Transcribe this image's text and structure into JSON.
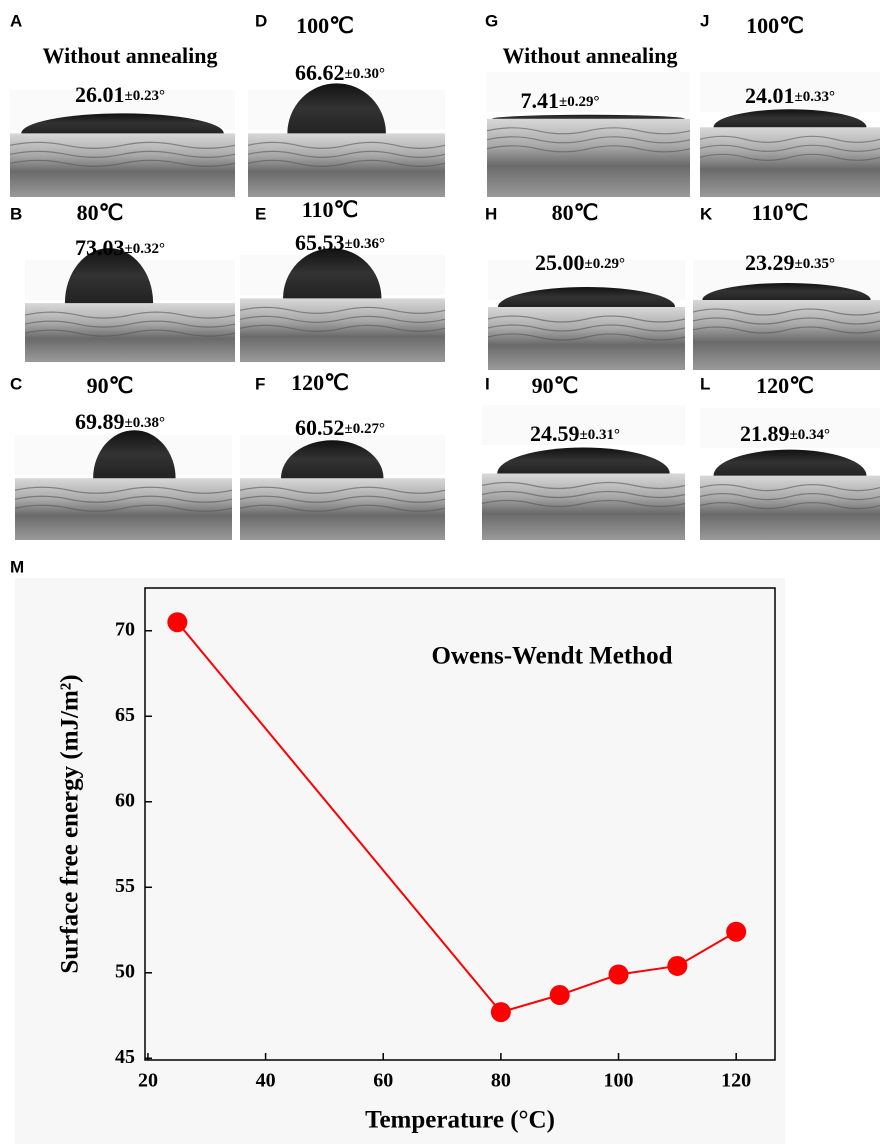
{
  "panels": [
    {
      "letter": "A",
      "condition": "Without annealing",
      "angle": "26.01",
      "error": "±0.23°"
    },
    {
      "letter": "D",
      "condition": "100℃",
      "angle": "66.62",
      "error": "±0.30°"
    },
    {
      "letter": "B",
      "condition": "80℃",
      "angle": "73.03",
      "error": "±0.32°"
    },
    {
      "letter": "E",
      "condition": "110℃",
      "angle": "65.53",
      "error": "±0.36°"
    },
    {
      "letter": "C",
      "condition": "90℃",
      "angle": "69.89",
      "error": "±0.38°"
    },
    {
      "letter": "F",
      "condition": "120℃",
      "angle": "60.52",
      "error": "±0.27°"
    },
    {
      "letter": "G",
      "condition": "Without annealing",
      "angle": "7.41",
      "error": "±0.29°"
    },
    {
      "letter": "J",
      "condition": "100℃",
      "angle": "24.01",
      "error": "±0.33°"
    },
    {
      "letter": "H",
      "condition": "80℃",
      "angle": "25.00",
      "error": "±0.29°"
    },
    {
      "letter": "K",
      "condition": "110℃",
      "angle": "23.29",
      "error": "±0.35°"
    },
    {
      "letter": "I",
      "condition": "90℃",
      "angle": "24.59",
      "error": "±0.31°"
    },
    {
      "letter": "L",
      "condition": "120℃",
      "angle": "21.89",
      "error": "±0.34°"
    }
  ],
  "chart_data": {
    "type": "line",
    "panel_letter": "M",
    "title": "Owens-Wendt Method",
    "xlabel": "Temperature (°C)",
    "ylabel": "Surface free energy (mJ/m²)",
    "x": [
      25,
      80,
      90,
      100,
      110,
      120
    ],
    "values": [
      70.5,
      47.7,
      48.7,
      49.9,
      50.4,
      52.4
    ],
    "color": "#ff0000",
    "xlim": [
      19.5,
      126.6
    ],
    "ylim": [
      44.9,
      72.5
    ],
    "xticks": [
      20,
      40,
      60,
      80,
      100,
      120
    ],
    "yticks": [
      45,
      50,
      55,
      60,
      65,
      70
    ]
  }
}
